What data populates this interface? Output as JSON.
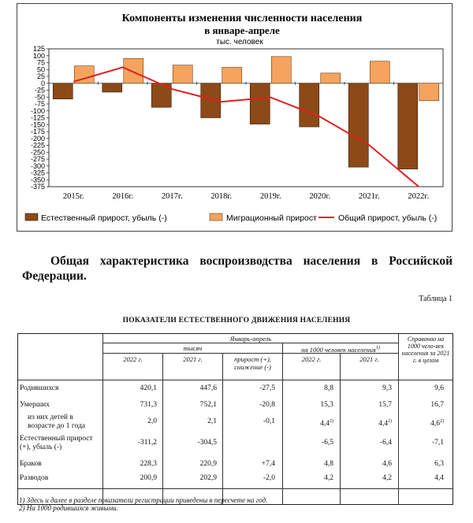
{
  "chart_data": {
    "type": "bar",
    "title": "Компоненты изменения численности населения",
    "subtitle": "в январе-апреле",
    "units": "тыс. человек",
    "categories": [
      "2015г.",
      "2016г.",
      "2017г.",
      "2018г.",
      "2019г.",
      "2020г.",
      "2021г.",
      "2022г."
    ],
    "ylim": [
      -375,
      125
    ],
    "yticks": [
      "125",
      "100",
      "75",
      "50",
      "25",
      "0",
      "-25",
      "-50",
      "-75",
      "-100",
      "-125",
      "-150",
      "-175",
      "-200",
      "-225",
      "-250",
      "-275",
      "-300",
      "-325",
      "-350",
      "-375"
    ],
    "series": [
      {
        "name": "Естественный прирост, убыль (-)",
        "type": "bar",
        "color": "#8b4a17",
        "values": [
          -57,
          -32,
          -87,
          -125,
          -148,
          -158,
          -304,
          -311
        ]
      },
      {
        "name": "Миграционный прирост",
        "type": "bar",
        "color": "#f5a45f",
        "values": [
          63,
          90,
          66,
          58,
          97,
          37,
          80,
          -63
        ]
      },
      {
        "name": "Общий прирост, убыль (-)",
        "type": "line",
        "color": "#e02020",
        "values": [
          6,
          58,
          -21,
          -67,
          -51,
          -121,
          -224,
          -374
        ]
      }
    ],
    "grid": false,
    "legend": "bottom"
  },
  "section_heading": "Общая характеристика воспроизводства населения в Российской Федерации.",
  "table_number": "Таблица 1",
  "table_title": "ПОКАЗАТЕЛИ ЕСТЕСТВЕННОГО ДВИЖЕНИЯ НАСЕЛЕНИЯ",
  "table": {
    "header_group": "Январь-апрель",
    "header_thousands": "тысяч",
    "header_per1000": "на 1000 человек населения",
    "header_per1000_sup": "1)",
    "header_ref": "Справочно на 1000 чело-век населения за 2021 г. в целом",
    "col_2022": "2022 г.",
    "col_2021": "2021 г.",
    "col_change": "прирост (+), снижение (-)",
    "col_2022b": "2022 г.",
    "col_2021b": "2021 г.",
    "rows": [
      {
        "label": "Родившихся",
        "v1": "420,1",
        "v2": "447,6",
        "v3": "-27,5",
        "v4": "8,8",
        "v5": "9,3",
        "v6": "9,6"
      },
      {
        "label": "Умерших",
        "v1": "731,3",
        "v2": "752,1",
        "v3": "-20,8",
        "v4": "15,3",
        "v5": "15,7",
        "v6": "16,7"
      },
      {
        "label": "из них детей в возрасте до 1 года",
        "v1": "2,0",
        "v2": "2,1",
        "v3": "-0,1",
        "v4": "4,4",
        "v4s": "2)",
        "v5": "4,4",
        "v5s": "2)",
        "v6": "4,6",
        "v6s": "2)"
      },
      {
        "label": "Естественный прирост (+), убыль (-)",
        "v1": "-311,2",
        "v2": "-304,5",
        "v3": "",
        "v4": "-6,5",
        "v5": "-6,4",
        "v6": "-7,1"
      },
      {
        "label": "Браков",
        "v1": "228,3",
        "v2": "220,9",
        "v3": "+7,4",
        "v4": "4,8",
        "v5": "4,6",
        "v6": "6,3"
      },
      {
        "label": "Разводов",
        "v1": "200,9",
        "v2": "202,9",
        "v3": "-2,0",
        "v4": "4,2",
        "v5": "4,2",
        "v6": "4,4"
      }
    ]
  },
  "footnotes": {
    "f1": "1) Здесь и далее в разделе показатели регистрации приведены в пересчете на год.",
    "f2": "2) На 1000 родившихся живыми."
  }
}
